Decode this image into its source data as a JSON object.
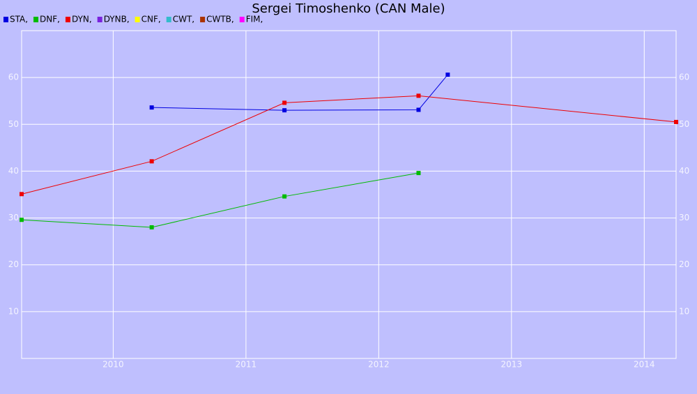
{
  "chart_data": {
    "type": "line",
    "title": "Sergei Timoshenko (CAN Male)",
    "xlim": [
      2009.31,
      2014.24
    ],
    "xticks": [
      2010,
      2011,
      2012,
      2013,
      2014
    ],
    "ylim": [
      0,
      70
    ],
    "yticks": [
      10,
      20,
      30,
      40,
      50,
      60
    ],
    "grid": true,
    "legend": "top-left",
    "series": [
      {
        "name": "STA,",
        "color": "#0000e0",
        "x": [
          2010.29,
          2011.29,
          2012.3,
          2012.52
        ],
        "values": [
          53.6,
          53.0,
          53.1,
          60.6
        ]
      },
      {
        "name": "DNF,",
        "color": "#00bb00",
        "x": [
          2009.31,
          2010.29,
          2011.29,
          2012.3
        ],
        "values": [
          29.6,
          28.0,
          34.6,
          39.6
        ]
      },
      {
        "name": "DYN,",
        "color": "#ee0000",
        "x": [
          2009.31,
          2010.29,
          2011.29,
          2012.3,
          2014.24
        ],
        "values": [
          35.1,
          42.1,
          54.6,
          56.1,
          50.5
        ]
      },
      {
        "name": "DYNB,",
        "color": "#7a22dd",
        "x": [],
        "values": []
      },
      {
        "name": "CNF,",
        "color": "#ffff00",
        "x": [],
        "values": []
      },
      {
        "name": "CWT,",
        "color": "#33bbcc",
        "x": [],
        "values": []
      },
      {
        "name": "CWTB,",
        "color": "#aa3300",
        "x": [],
        "values": []
      },
      {
        "name": "FIM,",
        "color": "#ff00ff",
        "x": [],
        "values": []
      }
    ]
  }
}
